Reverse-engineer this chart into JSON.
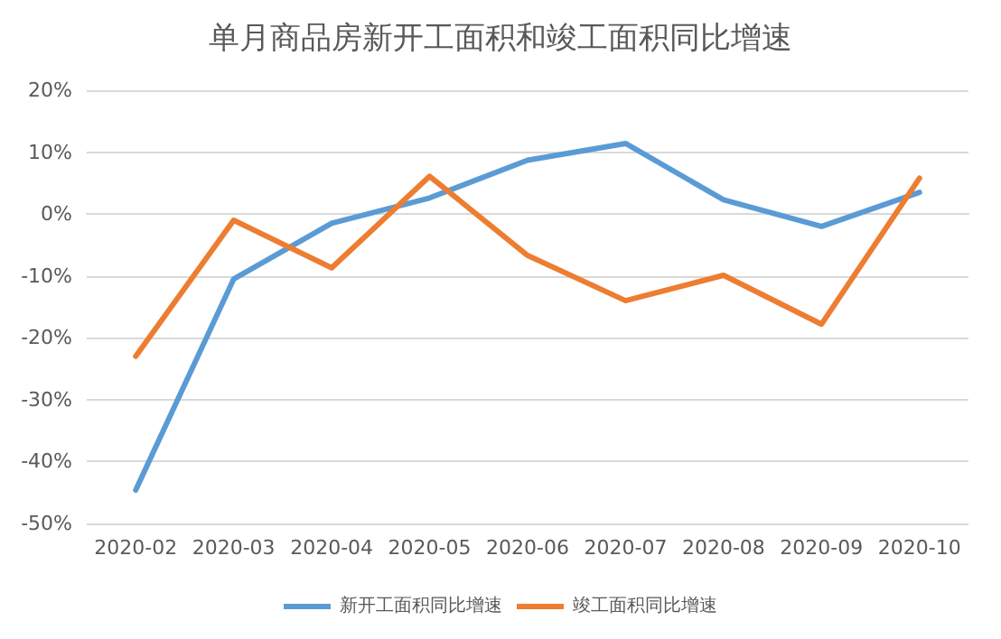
{
  "chart_data": {
    "type": "line",
    "title": "单月商品房新开工面积和竣工面积同比增速",
    "categories": [
      "2020-02",
      "2020-03",
      "2020-04",
      "2020-05",
      "2020-06",
      "2020-07",
      "2020-08",
      "2020-09",
      "2020-10"
    ],
    "series": [
      {
        "name": "新开工面积同比增速",
        "color": "#5b9bd5",
        "values": [
          -44.6,
          -10.5,
          -1.5,
          2.6,
          8.7,
          11.4,
          2.3,
          -2,
          3.5
        ]
      },
      {
        "name": "竣工面积同比增速",
        "color": "#ed7d31",
        "values": [
          -23,
          -1,
          -8.7,
          6.1,
          -6.7,
          -14,
          -9.9,
          -17.8,
          5.8
        ]
      }
    ],
    "ylim": [
      -50,
      20
    ],
    "yticks": [
      {
        "value": -50,
        "label": "-50%"
      },
      {
        "value": -40,
        "label": "-40%"
      },
      {
        "value": -30,
        "label": "-30%"
      },
      {
        "value": -20,
        "label": "-20%"
      },
      {
        "value": -10,
        "label": "-10%"
      },
      {
        "value": 0,
        "label": "0%"
      },
      {
        "value": 10,
        "label": "10%"
      },
      {
        "value": 20,
        "label": "20%"
      }
    ],
    "grid": "y",
    "legend": "bottom",
    "marker": "none",
    "line_style": "solid"
  }
}
